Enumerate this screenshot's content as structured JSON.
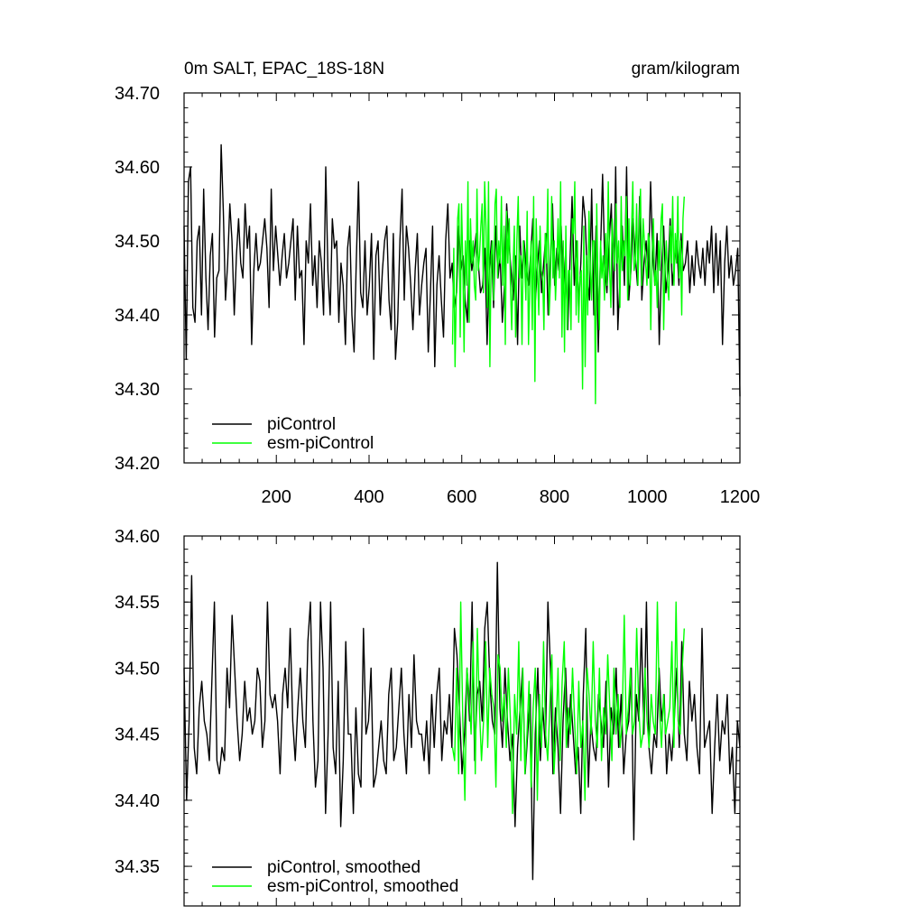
{
  "chart_data": [
    {
      "type": "line",
      "title_left": "0m SALT, EPAC_18S-18N",
      "title_right": "gram/kilogram",
      "xlabel": "",
      "ylabel": "",
      "xlim": [
        1,
        1200
      ],
      "ylim": [
        34.2,
        34.7
      ],
      "x_ticks": [
        200,
        400,
        600,
        800,
        1000,
        1200
      ],
      "x_tick_labels": [
        "200",
        "400",
        "600",
        "800",
        "1000",
        "1200"
      ],
      "y_ticks": [
        34.2,
        34.3,
        34.4,
        34.5,
        34.6,
        34.7
      ],
      "y_tick_labels": [
        "34.20",
        "34.30",
        "34.40",
        "34.50",
        "34.60",
        "34.70"
      ],
      "grid": false,
      "legend_position": "bottom-left",
      "series": [
        {
          "name": "piControl",
          "color": "#000000",
          "x_range": [
            1,
            1200
          ],
          "values": [
            34.52,
            34.34,
            34.58,
            34.6,
            34.41,
            34.39,
            34.5,
            34.52,
            34.4,
            34.57,
            34.45,
            34.38,
            34.48,
            34.51,
            34.37,
            34.45,
            34.46,
            34.63,
            34.54,
            34.42,
            34.47,
            34.55,
            34.5,
            34.4,
            34.48,
            34.53,
            34.47,
            34.45,
            34.55,
            34.49,
            34.52,
            34.36,
            34.46,
            34.51,
            34.46,
            34.47,
            34.5,
            34.53,
            34.49,
            34.41,
            34.57,
            34.46,
            34.52,
            34.48,
            34.44,
            34.48,
            34.51,
            34.45,
            34.47,
            34.5,
            34.53,
            34.42,
            34.52,
            34.45,
            34.46,
            34.36,
            34.5,
            34.47,
            34.55,
            34.44,
            34.48,
            34.41,
            34.5,
            34.47,
            34.4,
            34.6,
            34.46,
            34.4,
            34.53,
            34.49,
            34.5,
            34.39,
            34.47,
            34.44,
            34.36,
            34.49,
            34.52,
            34.4,
            34.35,
            34.47,
            34.58,
            34.43,
            34.41,
            34.5,
            34.4,
            34.44,
            34.51,
            34.34,
            34.48,
            34.5,
            34.4,
            34.46,
            34.5,
            34.52,
            34.42,
            34.38,
            34.51,
            34.34,
            34.39,
            34.5,
            34.57,
            34.42,
            34.52,
            34.49,
            34.44,
            34.38,
            34.46,
            34.51,
            34.4,
            34.44,
            34.47,
            34.49,
            34.35,
            34.43,
            34.52,
            34.33,
            34.44,
            34.48,
            34.42,
            34.37,
            34.5,
            34.55,
            34.45,
            34.47,
            34.41,
            34.43,
            34.52,
            34.46,
            34.48,
            34.42,
            34.39,
            34.5,
            34.46,
            34.48,
            34.51,
            34.47,
            34.43,
            34.44,
            34.49,
            34.36,
            34.46,
            34.5,
            34.41,
            34.52,
            34.45,
            34.48,
            34.39,
            34.44,
            34.55,
            34.5,
            34.46,
            34.42,
            34.48,
            34.36,
            34.52,
            34.45,
            34.5,
            34.46,
            34.44,
            34.48,
            34.53,
            34.41,
            34.46,
            34.5,
            34.43,
            34.47,
            34.51,
            34.4,
            34.47,
            34.55,
            34.44,
            34.49,
            34.46,
            34.52,
            34.43,
            34.48,
            34.38,
            34.47,
            34.56,
            34.44,
            34.5,
            34.41,
            34.47,
            34.56,
            34.53,
            34.45,
            34.42,
            34.57,
            34.4,
            34.52,
            34.35,
            34.48,
            34.59,
            34.47,
            34.43,
            34.5,
            34.55,
            34.4,
            34.6,
            34.38,
            34.45,
            34.52,
            34.44,
            34.6,
            34.42,
            34.46,
            34.53,
            34.48,
            34.44,
            34.56,
            34.42,
            34.47,
            34.5,
            34.45,
            34.58,
            34.48,
            34.44,
            34.51,
            34.36,
            34.46,
            34.52,
            34.43,
            34.46,
            34.53,
            34.44,
            34.47,
            34.5,
            34.44,
            34.51,
            34.46,
            34.47,
            34.5,
            34.43,
            34.48,
            34.44,
            34.5,
            34.47,
            34.45,
            34.49,
            34.44,
            34.5,
            34.47,
            34.52,
            34.43,
            34.51,
            34.44,
            34.5,
            34.36,
            34.47,
            34.52,
            34.45,
            34.48,
            34.44,
            34.46,
            34.49,
            34.29
          ]
        },
        {
          "name": "esm-piControl",
          "color": "#00ff00",
          "x_range": [
            580,
            1080
          ],
          "values": [
            34.36,
            34.49,
            34.33,
            34.43,
            34.53,
            34.55,
            34.37,
            34.55,
            34.47,
            34.35,
            34.5,
            34.44,
            34.58,
            34.39,
            34.53,
            34.47,
            34.5,
            34.44,
            34.42,
            34.57,
            34.46,
            34.48,
            34.52,
            34.55,
            34.43,
            34.58,
            34.52,
            34.41,
            34.58,
            34.33,
            34.48,
            34.5,
            34.42,
            34.55,
            34.57,
            34.45,
            34.5,
            34.47,
            34.56,
            34.44,
            34.52,
            34.36,
            34.54,
            34.47,
            34.53,
            34.44,
            34.38,
            34.46,
            34.52,
            34.37,
            34.5,
            34.56,
            34.45,
            34.48,
            34.36,
            34.5,
            34.47,
            34.42,
            34.54,
            34.36,
            34.44,
            34.5,
            34.38,
            34.56,
            34.31,
            34.53,
            34.46,
            34.4,
            34.52,
            34.46,
            34.45,
            34.38,
            34.51,
            34.47,
            34.57,
            34.4,
            34.44,
            34.56,
            34.45,
            34.5,
            34.42,
            34.47,
            34.53,
            34.45,
            34.58,
            34.37,
            34.5,
            34.35,
            34.52,
            34.38,
            34.46,
            34.46,
            34.38,
            34.53,
            34.51,
            34.58,
            34.4,
            34.5,
            34.39,
            34.45,
            34.46,
            34.3,
            34.52,
            34.33,
            34.48,
            34.4,
            34.54,
            34.46,
            34.42,
            34.5,
            34.5,
            34.28,
            34.55,
            34.44,
            34.38,
            34.5,
            34.45,
            34.48,
            34.42,
            34.51,
            34.44,
            34.58,
            34.46,
            34.41,
            34.53,
            34.49,
            34.46,
            34.55,
            34.47,
            34.5,
            34.41,
            34.56,
            34.46,
            34.5,
            34.48,
            34.56,
            34.42,
            34.53,
            34.44,
            34.51,
            34.58,
            34.46,
            34.47,
            34.55,
            34.44,
            34.52,
            34.57,
            34.44,
            34.53,
            34.5,
            34.47,
            34.44,
            34.51,
            34.5,
            34.38,
            34.48,
            34.53,
            34.44,
            34.46,
            34.41,
            34.5,
            34.46,
            34.53,
            34.55,
            34.38,
            34.46,
            34.5,
            34.44,
            34.42,
            34.52,
            34.47,
            34.56,
            34.44,
            34.51,
            34.47,
            34.56,
            34.45,
            34.5,
            34.4,
            34.53,
            34.56
          ]
        }
      ]
    },
    {
      "type": "line",
      "xlabel": "",
      "ylabel": "",
      "xlim": [
        1,
        1200
      ],
      "ylim": [
        34.32,
        34.6
      ],
      "x_ticks": [
        200,
        400,
        600,
        800,
        1000,
        1200
      ],
      "y_ticks": [
        34.35,
        34.4,
        34.45,
        34.5,
        34.55,
        34.6
      ],
      "y_tick_labels": [
        "34.35",
        "34.40",
        "34.45",
        "34.50",
        "34.55",
        "34.60"
      ],
      "grid": false,
      "legend_position": "bottom-left",
      "series": [
        {
          "name": "piControl, smoothed",
          "color": "#000000",
          "x_range": [
            1,
            1200
          ],
          "values": [
            34.5,
            34.4,
            34.46,
            34.57,
            34.44,
            34.42,
            34.47,
            34.49,
            34.46,
            34.45,
            34.43,
            34.49,
            34.55,
            34.43,
            34.42,
            34.44,
            34.43,
            34.5,
            34.47,
            34.54,
            34.5,
            34.46,
            34.43,
            34.45,
            34.49,
            34.46,
            34.47,
            34.45,
            34.46,
            34.5,
            34.49,
            34.44,
            34.46,
            34.55,
            34.48,
            34.47,
            34.48,
            34.46,
            34.42,
            34.48,
            34.5,
            34.47,
            34.53,
            34.46,
            34.43,
            34.47,
            34.5,
            34.46,
            34.44,
            34.52,
            34.55,
            34.46,
            34.41,
            34.43,
            34.55,
            34.5,
            34.39,
            34.45,
            34.55,
            34.44,
            34.42,
            34.49,
            34.38,
            34.43,
            34.52,
            34.45,
            34.45,
            34.39,
            34.47,
            34.42,
            34.41,
            34.53,
            34.45,
            34.46,
            34.5,
            34.41,
            34.42,
            34.44,
            34.46,
            34.43,
            34.42,
            34.48,
            34.5,
            34.43,
            34.44,
            34.47,
            34.5,
            34.45,
            34.42,
            34.48,
            34.44,
            34.51,
            34.46,
            34.45,
            34.45,
            34.43,
            34.46,
            34.42,
            34.48,
            34.44,
            34.48,
            34.5,
            34.43,
            34.46,
            34.45,
            34.48,
            34.44,
            34.53,
            34.51,
            34.47,
            34.42,
            34.45,
            34.5,
            34.46,
            34.55,
            34.43,
            34.48,
            34.49,
            34.46,
            34.53,
            34.55,
            34.49,
            34.46,
            34.45,
            34.58,
            34.47,
            34.44,
            34.5,
            34.46,
            34.43,
            34.45,
            34.38,
            34.44,
            34.47,
            34.5,
            34.42,
            34.45,
            34.48,
            34.34,
            34.45,
            34.5,
            34.43,
            34.47,
            34.44,
            34.55,
            34.5,
            34.42,
            34.47,
            34.44,
            34.39,
            34.46,
            34.5,
            34.44,
            34.48,
            34.45,
            34.42,
            34.44,
            34.39,
            34.48,
            34.53,
            34.41,
            34.46,
            34.44,
            34.43,
            34.48,
            34.46,
            34.44,
            34.49,
            34.41,
            34.47,
            34.45,
            34.5,
            34.44,
            34.48,
            34.42,
            34.45,
            34.46,
            34.5,
            34.37,
            34.48,
            34.46,
            34.53,
            34.45,
            34.55,
            34.44,
            34.42,
            34.45,
            34.44,
            34.5,
            34.46,
            34.48,
            34.42,
            34.45,
            34.43,
            34.46,
            34.5,
            34.44,
            34.52,
            34.45,
            34.43,
            34.49,
            34.46,
            34.48,
            34.44,
            34.42,
            34.53,
            34.44,
            34.45,
            34.46,
            34.39,
            34.44,
            34.48,
            34.43,
            34.46,
            34.45,
            34.48,
            34.42,
            34.44,
            34.39,
            34.46,
            34.44
          ]
        },
        {
          "name": "esm-piControl, smoothed",
          "color": "#00ff00",
          "x_range": [
            580,
            1080
          ],
          "values": [
            34.44,
            34.43,
            34.5,
            34.42,
            34.55,
            34.46,
            34.4,
            34.5,
            34.48,
            34.45,
            34.52,
            34.42,
            34.53,
            34.47,
            34.43,
            34.46,
            34.52,
            34.44,
            34.5,
            34.48,
            34.47,
            34.41,
            34.51,
            34.5,
            34.46,
            34.48,
            34.44,
            34.5,
            34.46,
            34.39,
            34.48,
            34.45,
            34.52,
            34.43,
            34.5,
            34.42,
            34.45,
            34.49,
            34.41,
            34.47,
            34.5,
            34.4,
            34.48,
            34.44,
            34.52,
            34.45,
            34.43,
            34.47,
            34.51,
            34.42,
            34.45,
            34.5,
            34.43,
            34.49,
            34.52,
            34.44,
            34.47,
            34.45,
            34.5,
            34.46,
            34.42,
            34.49,
            34.44,
            34.46,
            34.4,
            34.5,
            34.48,
            34.45,
            34.52,
            34.46,
            34.44,
            34.5,
            34.43,
            34.47,
            34.45,
            34.51,
            34.47,
            34.43,
            34.5,
            34.45,
            34.48,
            34.44,
            34.46,
            34.54,
            34.45,
            34.47,
            34.5,
            34.45,
            34.46,
            34.53,
            34.47,
            34.44,
            34.45,
            34.5,
            34.46,
            34.44,
            34.48,
            34.46,
            34.45,
            34.55,
            34.47,
            34.44,
            34.48,
            34.45,
            34.46,
            34.47,
            34.52,
            34.44,
            34.55,
            34.46,
            34.45,
            34.5,
            34.53
          ]
        }
      ]
    }
  ]
}
